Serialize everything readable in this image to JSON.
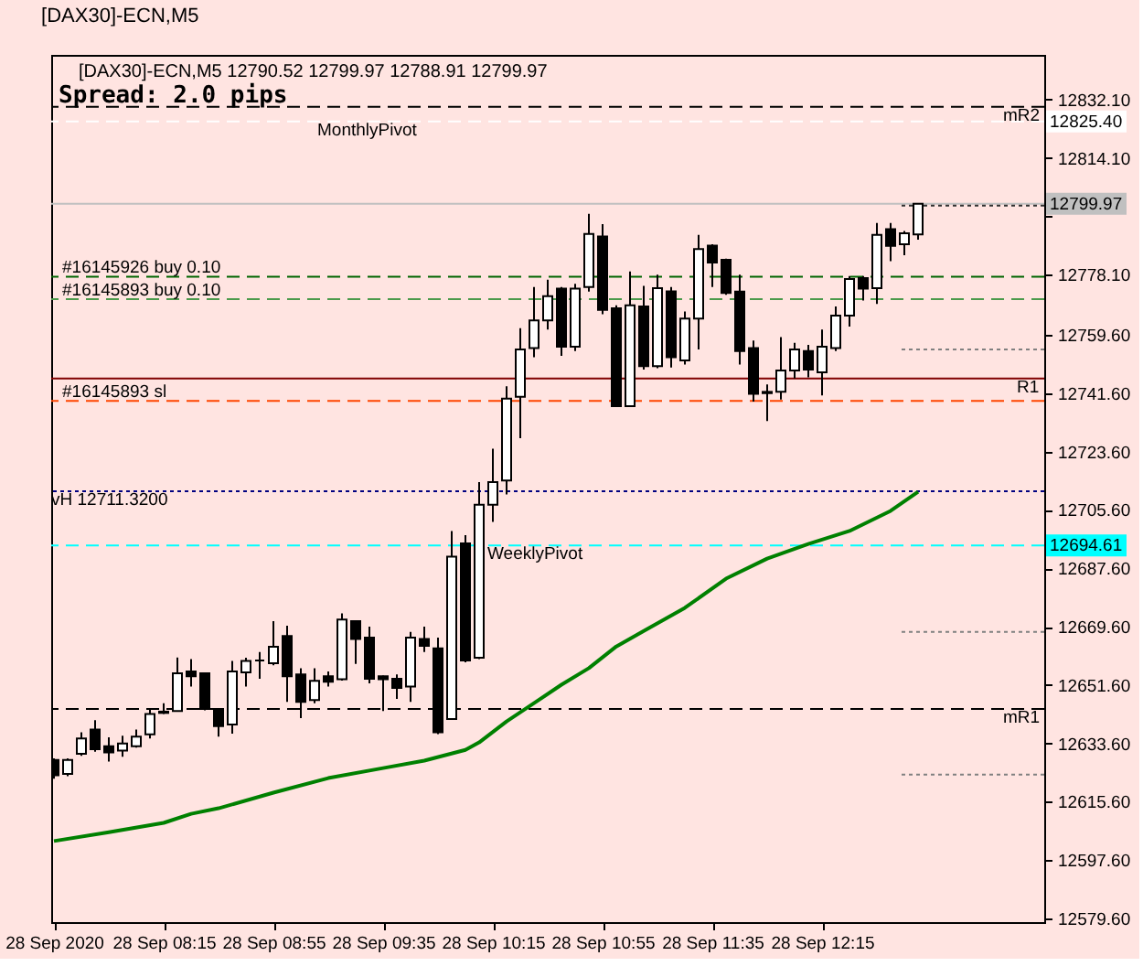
{
  "chart_data": {
    "type": "candlestick",
    "title": "[DAX30]-ECN,M5",
    "subtitle": "[DAX30]-ECN,M5  12790.52 12799.97 12788.91 12799.97",
    "x": [
      "2020-09-28T07:35",
      "2020-09-28T07:40",
      "2020-09-28T07:45",
      "2020-09-28T07:50",
      "2020-09-28T07:55",
      "2020-09-28T08:00",
      "2020-09-28T08:05",
      "2020-09-28T08:10",
      "2020-09-28T08:15",
      "2020-09-28T08:20",
      "2020-09-28T08:25",
      "2020-09-28T08:30",
      "2020-09-28T08:35",
      "2020-09-28T08:40",
      "2020-09-28T08:45",
      "2020-09-28T08:50",
      "2020-09-28T08:55",
      "2020-09-28T09:00",
      "2020-09-28T09:05",
      "2020-09-28T09:10",
      "2020-09-28T09:15",
      "2020-09-28T09:20",
      "2020-09-28T09:25",
      "2020-09-28T09:30",
      "2020-09-28T09:35",
      "2020-09-28T09:40",
      "2020-09-28T09:45",
      "2020-09-28T09:50",
      "2020-09-28T09:55",
      "2020-09-28T10:00",
      "2020-09-28T10:05",
      "2020-09-28T10:10",
      "2020-09-28T10:15",
      "2020-09-28T10:20",
      "2020-09-28T10:25",
      "2020-09-28T10:30",
      "2020-09-28T10:35",
      "2020-09-28T10:40",
      "2020-09-28T10:45",
      "2020-09-28T10:50",
      "2020-09-28T10:55",
      "2020-09-28T11:00",
      "2020-09-28T11:05",
      "2020-09-28T11:10",
      "2020-09-28T11:15",
      "2020-09-28T11:20",
      "2020-09-28T11:25",
      "2020-09-28T11:30",
      "2020-09-28T11:35",
      "2020-09-28T11:40",
      "2020-09-28T11:45",
      "2020-09-28T11:50",
      "2020-09-28T11:55",
      "2020-09-28T12:00",
      "2020-09-28T12:05",
      "2020-09-28T12:10",
      "2020-09-28T12:15",
      "2020-09-28T12:20",
      "2020-09-28T12:25",
      "2020-09-28T12:30",
      "2020-09-28T12:35",
      "2020-09-28T12:40",
      "2020-09-28T12:45",
      "2020-09-28T12:50"
    ],
    "ohlc": [
      [
        12628.5,
        12629.0,
        12622.7,
        12623.8
      ],
      [
        12624.2,
        12629.0,
        12623.5,
        12628.5
      ],
      [
        12630.4,
        12637.0,
        12629.8,
        12635.1
      ],
      [
        12637.9,
        12640.8,
        12631.0,
        12631.8
      ],
      [
        12632.7,
        12635.5,
        12628.0,
        12630.8
      ],
      [
        12631.4,
        12636.0,
        12629.5,
        12633.6
      ],
      [
        12632.7,
        12637.9,
        12632.3,
        12635.7
      ],
      [
        12636.4,
        12644.2,
        12635.1,
        12642.7
      ],
      [
        12643.0,
        12646.0,
        12642.7,
        12643.4
      ],
      [
        12643.6,
        12660.1,
        12643.6,
        12655.2
      ],
      [
        12655.8,
        12659.6,
        12651.1,
        12654.3
      ],
      [
        12655.2,
        12655.5,
        12643.8,
        12644.2
      ],
      [
        12644.2,
        12644.5,
        12635.7,
        12638.9
      ],
      [
        12639.4,
        12659.0,
        12636.6,
        12655.8
      ],
      [
        12655.5,
        12660.0,
        12651.1,
        12659.0
      ],
      [
        12659.2,
        12661.8,
        12653.5,
        12659.2
      ],
      [
        12658.3,
        12671.3,
        12657.7,
        12663.4
      ],
      [
        12666.7,
        12669.9,
        12646.4,
        12654.3
      ],
      [
        12654.9,
        12656.8,
        12641.4,
        12646.4
      ],
      [
        12647.0,
        12656.8,
        12646.0,
        12652.9
      ],
      [
        12654.3,
        12655.8,
        12651.1,
        12652.6
      ],
      [
        12653.4,
        12673.7,
        12653.0,
        12671.8
      ],
      [
        12671.3,
        12671.5,
        12658.1,
        12665.8
      ],
      [
        12666.2,
        12669.6,
        12652.1,
        12653.5
      ],
      [
        12654.3,
        12654.5,
        12643.6,
        12653.4
      ],
      [
        12653.5,
        12654.9,
        12647.3,
        12650.7
      ],
      [
        12651.1,
        12668.0,
        12646.4,
        12666.2
      ],
      [
        12665.8,
        12669.6,
        12661.8,
        12663.7
      ],
      [
        12662.9,
        12666.2,
        12636.5,
        12637.0
      ],
      [
        12641.1,
        12699.1,
        12641.1,
        12691.2
      ],
      [
        12695.3,
        12697.8,
        12658.6,
        12659.2
      ],
      [
        12660.0,
        12714.2,
        12659.6,
        12707.2
      ],
      [
        12707.2,
        12724.5,
        12701.9,
        12714.2
      ],
      [
        12714.7,
        12743.7,
        12710.4,
        12739.9
      ],
      [
        12740.5,
        12761.6,
        12727.7,
        12755.1
      ],
      [
        12755.5,
        12774.3,
        12752.7,
        12764.0
      ],
      [
        12764.0,
        12776.6,
        12761.2,
        12771.5
      ],
      [
        12773.8,
        12774.3,
        12753.1,
        12755.9
      ],
      [
        12755.9,
        12775.3,
        12754.6,
        12773.8
      ],
      [
        12774.3,
        12796.9,
        12772.9,
        12790.7
      ],
      [
        12789.9,
        12793.7,
        12765.9,
        12767.3
      ],
      [
        12767.8,
        12768.7,
        12737.3,
        12737.6
      ],
      [
        12737.6,
        12779.1,
        12737.3,
        12768.7
      ],
      [
        12768.3,
        12774.7,
        12748.9,
        12749.9
      ],
      [
        12749.9,
        12778.1,
        12749.3,
        12774.0
      ],
      [
        12773.0,
        12774.3,
        12749.5,
        12752.7
      ],
      [
        12751.7,
        12766.8,
        12750.4,
        12764.6
      ],
      [
        12764.6,
        12790.4,
        12755.1,
        12786.0
      ],
      [
        12787.1,
        12787.5,
        12774.3,
        12781.9
      ],
      [
        12782.7,
        12783.1,
        12771.9,
        12772.5
      ],
      [
        12772.9,
        12778.1,
        12750.4,
        12754.6
      ],
      [
        12755.5,
        12757.8,
        12739.0,
        12741.4
      ],
      [
        12742.0,
        12744.3,
        12733.0,
        12741.6
      ],
      [
        12742.0,
        12758.9,
        12739.6,
        12748.6
      ],
      [
        12748.6,
        12757.1,
        12746.1,
        12755.1
      ],
      [
        12754.6,
        12756.5,
        12746.5,
        12748.9
      ],
      [
        12748.0,
        12761.2,
        12740.9,
        12755.9
      ],
      [
        12755.5,
        12768.3,
        12754.6,
        12765.5
      ],
      [
        12765.5,
        12777.7,
        12762.1,
        12776.8
      ],
      [
        12777.1,
        12777.7,
        12770.2,
        12773.8
      ],
      [
        12774.0,
        12794.1,
        12769.1,
        12790.4
      ],
      [
        12792.2,
        12794.1,
        12782.3,
        12787.0
      ],
      [
        12787.5,
        12791.6,
        12784.1,
        12790.9
      ],
      [
        12790.52,
        12799.97,
        12788.91,
        12799.97
      ]
    ],
    "colors": [
      "#000000",
      "#ffffff",
      "#ffffff",
      "#000000",
      "#000000",
      "#ffffff",
      "#ffffff",
      "#ffffff",
      "#ffffff",
      "#ffffff",
      "#000000",
      "#000000",
      "#000000",
      "#ffffff",
      "#ffffff",
      "#000000",
      "#ffffff",
      "#000000",
      "#000000",
      "#ffffff",
      "#000000",
      "#ffffff",
      "#000000",
      "#000000",
      "#000000",
      "#000000",
      "#ffffff",
      "#000000",
      "#000000",
      "#ffffff",
      "#000000",
      "#ffffff",
      "#ffffff",
      "#ffffff",
      "#ffffff",
      "#ffffff",
      "#ffffff",
      "#000000",
      "#ffffff",
      "#ffffff",
      "#000000",
      "#000000",
      "#ffffff",
      "#000000",
      "#ffffff",
      "#000000",
      "#ffffff",
      "#ffffff",
      "#000000",
      "#000000",
      "#000000",
      "#000000",
      "#000000",
      "#ffffff",
      "#ffffff",
      "#000000",
      "#ffffff",
      "#ffffff",
      "#ffffff",
      "#000000",
      "#ffffff",
      "#000000",
      "#ffffff",
      "#ffffff"
    ],
    "color": "#000000",
    "series": [
      {
        "type": "line",
        "color": "#008000",
        "x": [
          "2020-09-28T07:35",
          "2020-09-28T07:55",
          "2020-09-28T08:15",
          "2020-09-28T08:25",
          "2020-09-28T08:35",
          "2020-09-28T08:55",
          "2020-09-28T09:15",
          "2020-09-28T09:35",
          "2020-09-28T09:50",
          "2020-09-28T10:05",
          "2020-09-28T10:10",
          "2020-09-28T10:20",
          "2020-09-28T10:30",
          "2020-09-28T10:40",
          "2020-09-28T10:50",
          "2020-09-28T11:00",
          "2020-09-28T11:10",
          "2020-09-28T11:25",
          "2020-09-28T11:40",
          "2020-09-28T11:55",
          "2020-09-28T12:10",
          "2020-09-28T12:25",
          "2020-09-28T12:40",
          "2020-09-28T12:50"
        ],
        "values": [
          12603.5,
          12606.2,
          12609.1,
          12611.9,
          12613.6,
          12618.4,
          12622.9,
          12626.0,
          12628.3,
          12631.6,
          12633.9,
          12640.4,
          12646.0,
          12651.7,
          12656.8,
          12663.5,
          12668.3,
          12675.4,
          12684.4,
          12690.6,
          12695.1,
          12699.1,
          12705.3,
          12711.2
        ]
      },
      {
        "type": "line",
        "color": "#303030",
        "line_style": "dotted",
        "x": [
          "2020-09-28T12:44",
          "2020-09-28T13:36"
        ],
        "values": [
          12799.4,
          12799.4
        ]
      },
      {
        "type": "line",
        "color": "#808080",
        "line_style": "dotted",
        "x": [
          "2020-09-28T12:44",
          "2020-09-28T13:36"
        ],
        "values": [
          12755.1,
          12755.1
        ]
      },
      {
        "type": "line",
        "color": "#808080",
        "line_style": "dotted",
        "x": [
          "2020-09-28T12:44",
          "2020-09-28T13:36"
        ],
        "values": [
          12668.0,
          12668.0
        ]
      },
      {
        "type": "line",
        "color": "#808080",
        "line_style": "dotted",
        "x": [
          "2020-09-28T12:44",
          "2020-09-28T13:36"
        ],
        "values": [
          12624.0,
          12624.0
        ]
      }
    ],
    "ref_lines": [
      {
        "axis": "y",
        "value": 12829.9,
        "color": "#000000",
        "line_style": "dashed"
      },
      {
        "axis": "y",
        "value": 12825.4,
        "label": "12825.40",
        "color": "#ffffff",
        "line_style": "dashed"
      },
      {
        "axis": "y",
        "value": 12799.97,
        "label": "12799.97",
        "color": "#c0c0c0",
        "line_style": "solid"
      },
      {
        "axis": "y",
        "value": 12777.5,
        "color": "#006400",
        "line_style": "dashed"
      },
      {
        "axis": "y",
        "value": 12770.6,
        "color": "#4c9a4c",
        "line_style": "dashed"
      },
      {
        "axis": "y",
        "value": 12746.1,
        "color": "#800000",
        "line_style": "solid"
      },
      {
        "axis": "y",
        "value": 12739.2,
        "color": "#ff4500",
        "line_style": "dashed"
      },
      {
        "axis": "y",
        "value": 12711.32,
        "color": "#000080",
        "line_style": "dotted"
      },
      {
        "axis": "y",
        "value": 12694.61,
        "label": "12694.61",
        "color": "#00ffff",
        "line_style": "dashed"
      },
      {
        "axis": "y",
        "value": 12644.2,
        "color": "#000000",
        "line_style": "dashed"
      }
    ],
    "annotations": [
      "Spread: 2.0 pips",
      {
        "text": "MonthlyPivot",
        "x": "2020-09-28T09:11",
        "y": 12822.9
      },
      {
        "text": "mR2",
        "x": "2020-09-28T13:21",
        "y": 12827.4
      },
      {
        "text": "#16145926 buy 0.10",
        "x": "2020-09-28T07:38",
        "y": 12780.5
      },
      {
        "text": "#16145893 buy 0.10",
        "x": "2020-09-28T07:38",
        "y": 12773.4
      },
      {
        "text": "#16145893 sl",
        "x": "2020-09-28T07:38",
        "y": 12742.0
      },
      {
        "text": "R1",
        "x": "2020-09-28T13:26",
        "y": 12743.6
      },
      {
        "text": "vH 12711.3200",
        "x": "2020-09-28T07:34",
        "y": 12708.8
      },
      {
        "text": "WeeklyPivot",
        "x": "2020-09-28T10:13",
        "y": 12692.1
      },
      {
        "text": "mR1",
        "x": "2020-09-28T13:21",
        "y": 12641.7
      }
    ],
    "xlim": [
      "2020-09-28T07:34",
      "2020-09-28T13:36"
    ],
    "xticks": [
      {
        "value": "2020-09-28T07:35",
        "label": "28 Sep 2020"
      },
      {
        "value": "2020-09-28T08:15",
        "label": "28 Sep 08:15"
      },
      {
        "value": "2020-09-28T08:55",
        "label": "28 Sep 08:55"
      },
      {
        "value": "2020-09-28T09:35",
        "label": "28 Sep 09:35"
      },
      {
        "value": "2020-09-28T10:15",
        "label": "28 Sep 10:15"
      },
      {
        "value": "2020-09-28T10:55",
        "label": "28 Sep 10:55"
      },
      {
        "value": "2020-09-28T11:35",
        "label": "28 Sep 11:35"
      },
      {
        "value": "2020-09-28T12:15",
        "label": "28 Sep 12:15"
      }
    ],
    "ylim": [
      12578.5,
      12845.9
    ],
    "yticks": [
      {
        "value": 12579.6,
        "label": "12579.60"
      },
      {
        "value": 12597.6,
        "label": "12597.60"
      },
      {
        "value": 12615.6,
        "label": "12615.60"
      },
      {
        "value": 12633.6,
        "label": "12633.60"
      },
      {
        "value": 12651.6,
        "label": "12651.60"
      },
      {
        "value": 12669.6,
        "label": "12669.60"
      },
      {
        "value": 12687.6,
        "label": "12687.60"
      },
      {
        "value": 12705.6,
        "label": "12705.60"
      },
      {
        "value": 12723.6,
        "label": "12723.60"
      },
      {
        "value": 12741.6,
        "label": "12741.60"
      },
      {
        "value": 12759.6,
        "label": "12759.60"
      },
      {
        "value": 12778.1,
        "label": "12778.10"
      },
      {
        "value": 12796.1,
        "label": null
      },
      {
        "value": 12814.1,
        "label": "12814.10"
      },
      {
        "value": 12832.1,
        "label": "12832.10"
      }
    ]
  }
}
